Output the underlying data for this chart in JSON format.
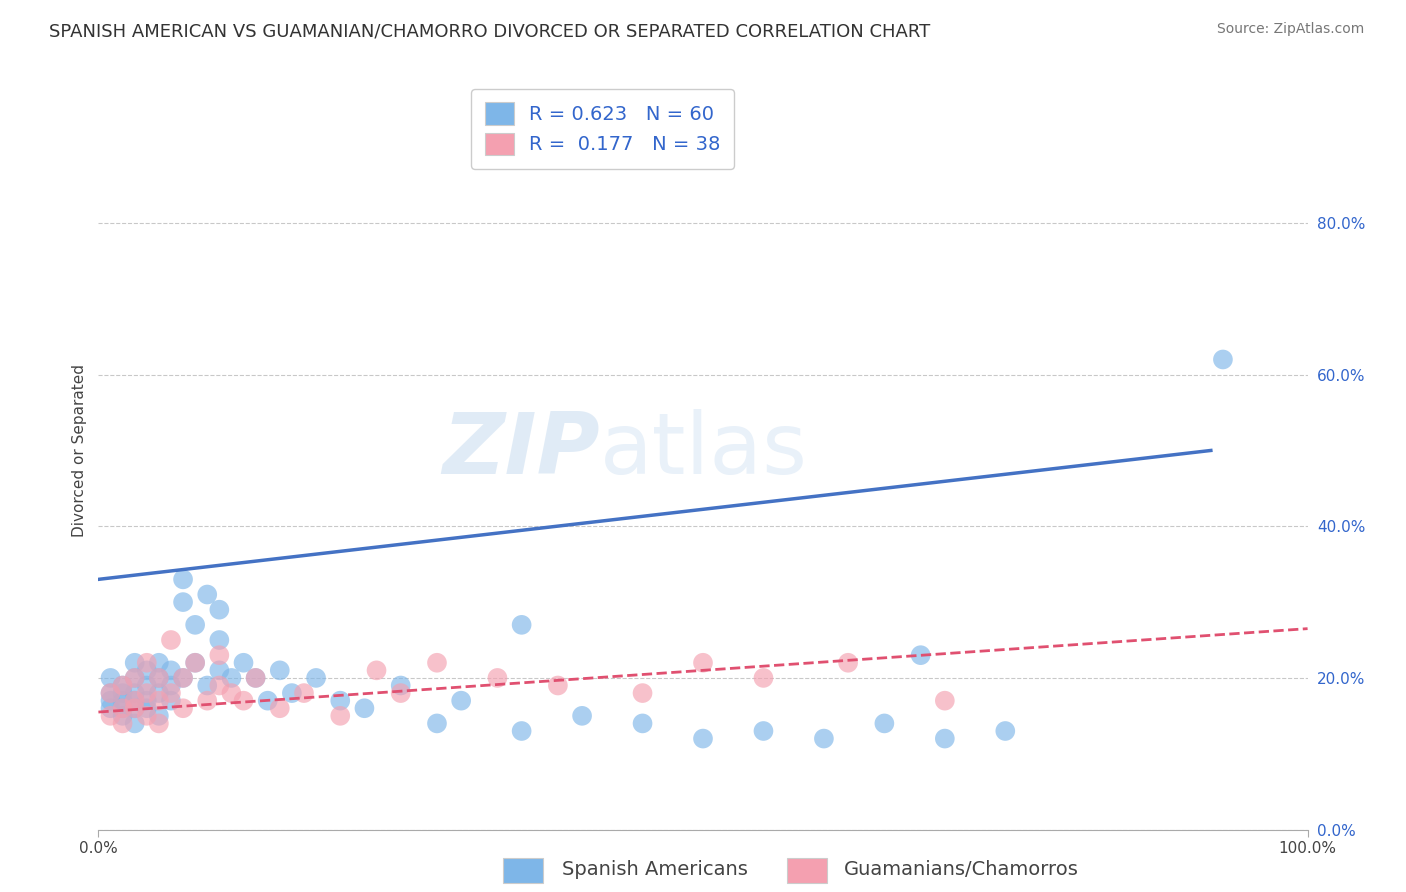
{
  "title": "SPANISH AMERICAN VS GUAMANIAN/CHAMORRO DIVORCED OR SEPARATED CORRELATION CHART",
  "source": "Source: ZipAtlas.com",
  "ylabel": "Divorced or Separated",
  "xlabel": "",
  "legend_labels": [
    "Spanish Americans",
    "Guamanians/Chamorros"
  ],
  "r_blue": 0.623,
  "n_blue": 60,
  "r_pink": 0.177,
  "n_pink": 38,
  "xlim": [
    0.0,
    1.0
  ],
  "ylim": [
    0.0,
    1.0
  ],
  "xtick_labels": [
    "0.0%",
    "100.0%"
  ],
  "ytick_labels": [
    "0.0%",
    "20.0%",
    "40.0%",
    "60.0%",
    "80.0%"
  ],
  "ytick_vals": [
    0.0,
    0.2,
    0.4,
    0.6,
    0.8
  ],
  "watermark_zip": "ZIP",
  "watermark_atlas": "atlas",
  "blue_color": "#7EB6E8",
  "pink_color": "#F4A0B0",
  "blue_line_color": "#4472C4",
  "pink_line_color": "#E05070",
  "background_color": "#FFFFFF",
  "grid_color": "#BBBBBB",
  "blue_line_x0": 0.0,
  "blue_line_y0": 0.33,
  "blue_line_x1": 0.92,
  "blue_line_y1": 0.5,
  "pink_line_x0": 0.0,
  "pink_line_y0": 0.155,
  "pink_line_x1": 1.0,
  "pink_line_y1": 0.265,
  "blue_scatter_x": [
    0.01,
    0.01,
    0.01,
    0.01,
    0.02,
    0.02,
    0.02,
    0.02,
    0.02,
    0.03,
    0.03,
    0.03,
    0.03,
    0.03,
    0.03,
    0.04,
    0.04,
    0.04,
    0.04,
    0.05,
    0.05,
    0.05,
    0.05,
    0.06,
    0.06,
    0.06,
    0.07,
    0.07,
    0.07,
    0.08,
    0.08,
    0.09,
    0.09,
    0.1,
    0.1,
    0.1,
    0.11,
    0.12,
    0.13,
    0.14,
    0.15,
    0.16,
    0.18,
    0.2,
    0.22,
    0.25,
    0.28,
    0.3,
    0.35,
    0.4,
    0.45,
    0.5,
    0.55,
    0.6,
    0.65,
    0.7,
    0.75,
    0.35,
    0.68,
    0.93
  ],
  "blue_scatter_y": [
    0.17,
    0.18,
    0.2,
    0.16,
    0.17,
    0.18,
    0.16,
    0.19,
    0.15,
    0.18,
    0.2,
    0.17,
    0.16,
    0.22,
    0.14,
    0.19,
    0.17,
    0.21,
    0.16,
    0.2,
    0.18,
    0.22,
    0.15,
    0.19,
    0.17,
    0.21,
    0.2,
    0.3,
    0.33,
    0.22,
    0.27,
    0.19,
    0.31,
    0.25,
    0.21,
    0.29,
    0.2,
    0.22,
    0.2,
    0.17,
    0.21,
    0.18,
    0.2,
    0.17,
    0.16,
    0.19,
    0.14,
    0.17,
    0.13,
    0.15,
    0.14,
    0.12,
    0.13,
    0.12,
    0.14,
    0.12,
    0.13,
    0.27,
    0.23,
    0.62
  ],
  "pink_scatter_x": [
    0.01,
    0.01,
    0.02,
    0.02,
    0.02,
    0.03,
    0.03,
    0.03,
    0.04,
    0.04,
    0.04,
    0.05,
    0.05,
    0.05,
    0.06,
    0.06,
    0.07,
    0.07,
    0.08,
    0.09,
    0.1,
    0.1,
    0.11,
    0.12,
    0.13,
    0.15,
    0.17,
    0.2,
    0.23,
    0.25,
    0.28,
    0.33,
    0.38,
    0.45,
    0.5,
    0.55,
    0.62,
    0.7
  ],
  "pink_scatter_y": [
    0.15,
    0.18,
    0.16,
    0.19,
    0.14,
    0.17,
    0.2,
    0.16,
    0.18,
    0.15,
    0.22,
    0.17,
    0.2,
    0.14,
    0.18,
    0.25,
    0.2,
    0.16,
    0.22,
    0.17,
    0.19,
    0.23,
    0.18,
    0.17,
    0.2,
    0.16,
    0.18,
    0.15,
    0.21,
    0.18,
    0.22,
    0.2,
    0.19,
    0.18,
    0.22,
    0.2,
    0.22,
    0.17
  ],
  "title_fontsize": 13,
  "axis_label_fontsize": 11,
  "tick_fontsize": 11,
  "legend_fontsize": 14,
  "source_fontsize": 10
}
